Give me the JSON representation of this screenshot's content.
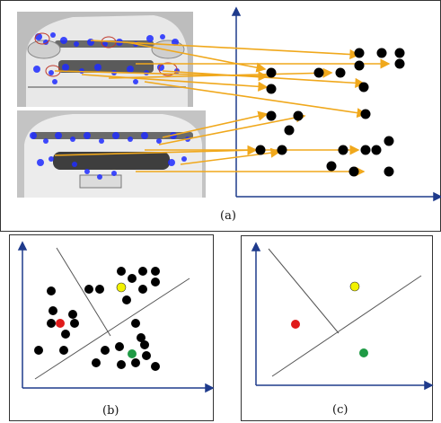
{
  "panels": {
    "a": {
      "caption": "(a)"
    },
    "b": {
      "caption": "(b)"
    },
    "c": {
      "caption": "(c)"
    }
  },
  "colors": {
    "axis": "#1f3b8c",
    "feature_arrow": "#f0a81c",
    "keypoint": "#1f2cff",
    "point": "#000000",
    "centroid_red": "#e01b1b",
    "centroid_yellow": "#f2f200",
    "centroid_green": "#1f9a45",
    "line": "#555555"
  },
  "icons": {
    "car_top": "car-front-photo-icon",
    "car_bottom": "car-grille-photo-icon"
  }
}
